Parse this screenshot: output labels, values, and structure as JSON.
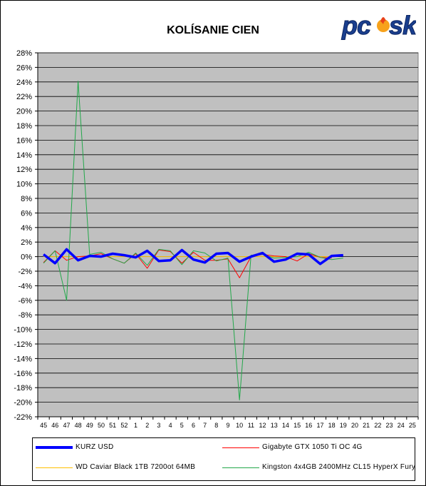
{
  "chart_data": {
    "type": "line",
    "title": "KOLÍSANIE CIEN",
    "logo_text": "pcsk",
    "ylim": [
      -22,
      28
    ],
    "y_step": 2,
    "y_unit": "%",
    "grid": true,
    "legend_position": "bottom",
    "categories": [
      "45",
      "46",
      "47",
      "48",
      "49",
      "50",
      "51",
      "52",
      "1",
      "2",
      "3",
      "4",
      "5",
      "6",
      "7",
      "8",
      "9",
      "10",
      "11",
      "12",
      "13",
      "14",
      "15",
      "16",
      "17",
      "18",
      "19",
      "20",
      "21",
      "22",
      "23",
      "24",
      "25"
    ],
    "series": [
      {
        "name": "KURZ USD",
        "color": "#0000ff",
        "width": 3.5,
        "values": [
          0.3,
          -0.9,
          1.0,
          -0.5,
          0.1,
          0.0,
          0.4,
          0.2,
          -0.1,
          0.8,
          -0.6,
          -0.5,
          0.9,
          -0.4,
          -0.8,
          0.4,
          0.5,
          -0.7,
          0.0,
          0.5,
          -0.7,
          -0.4,
          0.4,
          0.3,
          -1.0,
          0.1,
          0.2,
          null,
          null,
          null,
          null,
          null,
          null
        ]
      },
      {
        "name": "Gigabyte GTX 1050 Ti OC 4G",
        "color": "#ff0000",
        "width": 1,
        "values": [
          -0.8,
          0.8,
          -0.5,
          0.0,
          0.1,
          0.4,
          -0.3,
          -0.9,
          0.4,
          -1.6,
          0.9,
          0.7,
          -0.9,
          0.6,
          -0.5,
          -0.5,
          -0.3,
          -2.9,
          0.0,
          0.3,
          0.1,
          0.0,
          -0.6,
          0.4,
          -0.1,
          -0.2,
          null,
          null,
          null,
          null,
          null,
          null,
          null
        ]
      },
      {
        "name": "WD Caviar Black 1TB 7200ot 64MB",
        "color": "#ffc000",
        "width": 1,
        "values": [
          0.0,
          0.0,
          0.0,
          0.0,
          0.0,
          0.0,
          0.0,
          0.0,
          0.0,
          0.0,
          0.0,
          0.0,
          0.0,
          0.0,
          0.0,
          0.0,
          0.0,
          0.0,
          0.0,
          0.0,
          0.0,
          0.0,
          0.0,
          0.0,
          0.0,
          0.0,
          null,
          null,
          null,
          null,
          null,
          null,
          null
        ]
      },
      {
        "name": "Kingston 4x4GB 2400MHz CL15 HyperX Fury",
        "color": "#22a84a",
        "width": 1,
        "values": [
          -0.9,
          0.8,
          -6.0,
          24.1,
          0.3,
          0.6,
          -0.3,
          -0.9,
          0.5,
          -1.2,
          1.0,
          0.8,
          -1.1,
          0.8,
          0.5,
          -0.6,
          -0.2,
          -19.7,
          0.2,
          0.3,
          -0.2,
          -0.1,
          0.0,
          0.6,
          -0.1,
          -0.4,
          -0.2,
          null,
          null,
          null,
          null,
          null,
          null
        ]
      }
    ]
  }
}
